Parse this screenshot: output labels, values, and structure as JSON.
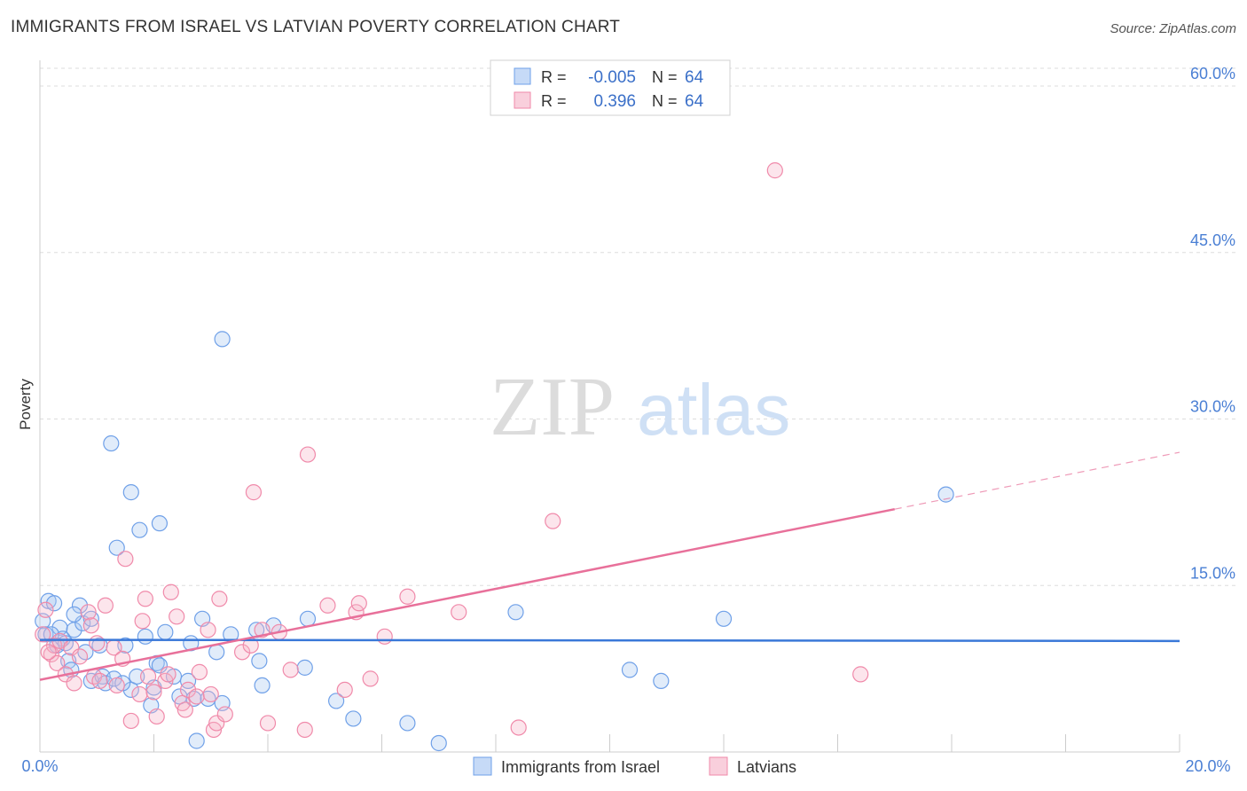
{
  "header": {
    "title": "IMMIGRANTS FROM ISRAEL VS LATVIAN POVERTY CORRELATION CHART",
    "source": "Source: ZipAtlas.com"
  },
  "watermark": {
    "part1": "ZIP",
    "part2": "atlas"
  },
  "legend_box": {
    "rows": [
      {
        "r_label": "R =",
        "r_value": "-0.005",
        "n_label": "N =",
        "n_value": "64",
        "color": "#6fa0e8"
      },
      {
        "r_label": "R =",
        "r_value": "0.396",
        "n_label": "N =",
        "n_value": "64",
        "color": "#f08aaa"
      }
    ]
  },
  "chart_data": {
    "type": "scatter",
    "title": "IMMIGRANTS FROM ISRAEL VS LATVIAN POVERTY CORRELATION CHART",
    "xlabel": "",
    "ylabel": "Poverty",
    "xlim": [
      0,
      20
    ],
    "ylim": [
      0,
      60
    ],
    "x_tick_labels": [
      "0.0%",
      "20.0%"
    ],
    "y_tick_labels": [
      "15.0%",
      "30.0%",
      "45.0%",
      "60.0%"
    ],
    "y_ticks": [
      15,
      30,
      45,
      60
    ],
    "grid": true,
    "legend_position": "bottom",
    "series": [
      {
        "name": "Immigrants from Israel",
        "color": "#6fa0e8",
        "trend": {
          "x": [
            0,
            20
          ],
          "y": [
            10.1,
            10.0
          ],
          "dashed_from": null
        },
        "points": [
          [
            0.05,
            11.8
          ],
          [
            0.1,
            10.6
          ],
          [
            0.15,
            13.6
          ],
          [
            0.25,
            13.4
          ],
          [
            0.3,
            9.6
          ],
          [
            0.35,
            11.2
          ],
          [
            0.4,
            10.2
          ],
          [
            0.45,
            9.8
          ],
          [
            0.5,
            8.2
          ],
          [
            0.55,
            7.4
          ],
          [
            0.6,
            11.0
          ],
          [
            0.7,
            13.2
          ],
          [
            0.75,
            11.6
          ],
          [
            0.8,
            9.0
          ],
          [
            0.9,
            6.4
          ],
          [
            1.05,
            9.6
          ],
          [
            1.1,
            6.8
          ],
          [
            1.15,
            6.2
          ],
          [
            1.3,
            6.6
          ],
          [
            1.35,
            18.4
          ],
          [
            1.5,
            9.6
          ],
          [
            1.6,
            5.6
          ],
          [
            1.7,
            6.8
          ],
          [
            1.75,
            20.0
          ],
          [
            1.85,
            10.4
          ],
          [
            1.95,
            4.2
          ],
          [
            2.05,
            8.0
          ],
          [
            2.1,
            7.8
          ],
          [
            2.2,
            10.8
          ],
          [
            2.35,
            6.8
          ],
          [
            2.45,
            5.0
          ],
          [
            2.6,
            6.4
          ],
          [
            2.65,
            9.8
          ],
          [
            2.7,
            4.8
          ],
          [
            2.85,
            12.0
          ],
          [
            2.95,
            4.8
          ],
          [
            3.1,
            9.0
          ],
          [
            3.2,
            4.4
          ],
          [
            3.35,
            10.6
          ],
          [
            3.8,
            11.0
          ],
          [
            3.85,
            8.2
          ],
          [
            3.9,
            6.0
          ],
          [
            4.1,
            11.4
          ],
          [
            4.65,
            7.6
          ],
          [
            4.7,
            12.0
          ],
          [
            5.2,
            4.6
          ],
          [
            5.5,
            3.0
          ],
          [
            6.45,
            2.6
          ],
          [
            7.0,
            0.8
          ],
          [
            1.25,
            27.8
          ],
          [
            1.6,
            23.4
          ],
          [
            2.1,
            20.6
          ],
          [
            3.2,
            37.2
          ],
          [
            2.75,
            1.0
          ],
          [
            8.35,
            12.6
          ],
          [
            10.35,
            7.4
          ],
          [
            10.9,
            6.4
          ],
          [
            12.0,
            12.0
          ],
          [
            15.9,
            23.2
          ],
          [
            0.2,
            10.6
          ],
          [
            0.6,
            12.4
          ],
          [
            1.45,
            6.2
          ],
          [
            0.9,
            12.0
          ],
          [
            2.0,
            5.8
          ]
        ]
      },
      {
        "name": "Latvians",
        "color": "#f08aaa",
        "trend": {
          "x": [
            0,
            20
          ],
          "y": [
            6.5,
            27.0
          ],
          "dashed_from": 15
        },
        "points": [
          [
            0.05,
            10.6
          ],
          [
            0.1,
            12.8
          ],
          [
            0.2,
            8.8
          ],
          [
            0.25,
            9.6
          ],
          [
            0.3,
            8.0
          ],
          [
            0.35,
            10.0
          ],
          [
            0.45,
            7.0
          ],
          [
            0.55,
            9.4
          ],
          [
            0.6,
            6.2
          ],
          [
            0.7,
            8.6
          ],
          [
            0.85,
            12.6
          ],
          [
            0.9,
            11.4
          ],
          [
            0.95,
            6.8
          ],
          [
            1.05,
            6.4
          ],
          [
            1.15,
            13.2
          ],
          [
            1.3,
            9.4
          ],
          [
            1.35,
            6.0
          ],
          [
            1.45,
            8.4
          ],
          [
            1.5,
            17.4
          ],
          [
            1.6,
            2.8
          ],
          [
            1.75,
            5.2
          ],
          [
            1.8,
            11.8
          ],
          [
            1.85,
            13.8
          ],
          [
            1.9,
            6.8
          ],
          [
            2.0,
            5.4
          ],
          [
            2.05,
            3.2
          ],
          [
            2.2,
            6.4
          ],
          [
            2.3,
            14.4
          ],
          [
            2.4,
            12.2
          ],
          [
            2.5,
            4.4
          ],
          [
            2.55,
            3.8
          ],
          [
            2.6,
            5.6
          ],
          [
            2.75,
            5.0
          ],
          [
            2.8,
            7.2
          ],
          [
            2.95,
            11.0
          ],
          [
            3.0,
            5.2
          ],
          [
            3.05,
            2.0
          ],
          [
            3.1,
            2.6
          ],
          [
            3.15,
            13.8
          ],
          [
            3.25,
            3.4
          ],
          [
            3.55,
            9.0
          ],
          [
            3.7,
            9.6
          ],
          [
            3.75,
            23.4
          ],
          [
            3.9,
            11.0
          ],
          [
            4.0,
            2.6
          ],
          [
            4.2,
            10.8
          ],
          [
            4.4,
            7.4
          ],
          [
            4.65,
            2.0
          ],
          [
            4.7,
            26.8
          ],
          [
            5.05,
            13.2
          ],
          [
            5.35,
            5.6
          ],
          [
            5.55,
            12.6
          ],
          [
            5.6,
            13.4
          ],
          [
            5.8,
            6.6
          ],
          [
            6.05,
            10.4
          ],
          [
            6.45,
            14.0
          ],
          [
            7.35,
            12.6
          ],
          [
            8.4,
            2.2
          ],
          [
            9.0,
            20.8
          ],
          [
            12.9,
            52.4
          ],
          [
            14.4,
            7.0
          ],
          [
            0.15,
            9.0
          ],
          [
            1.0,
            9.8
          ],
          [
            2.25,
            7.0
          ]
        ]
      }
    ]
  }
}
